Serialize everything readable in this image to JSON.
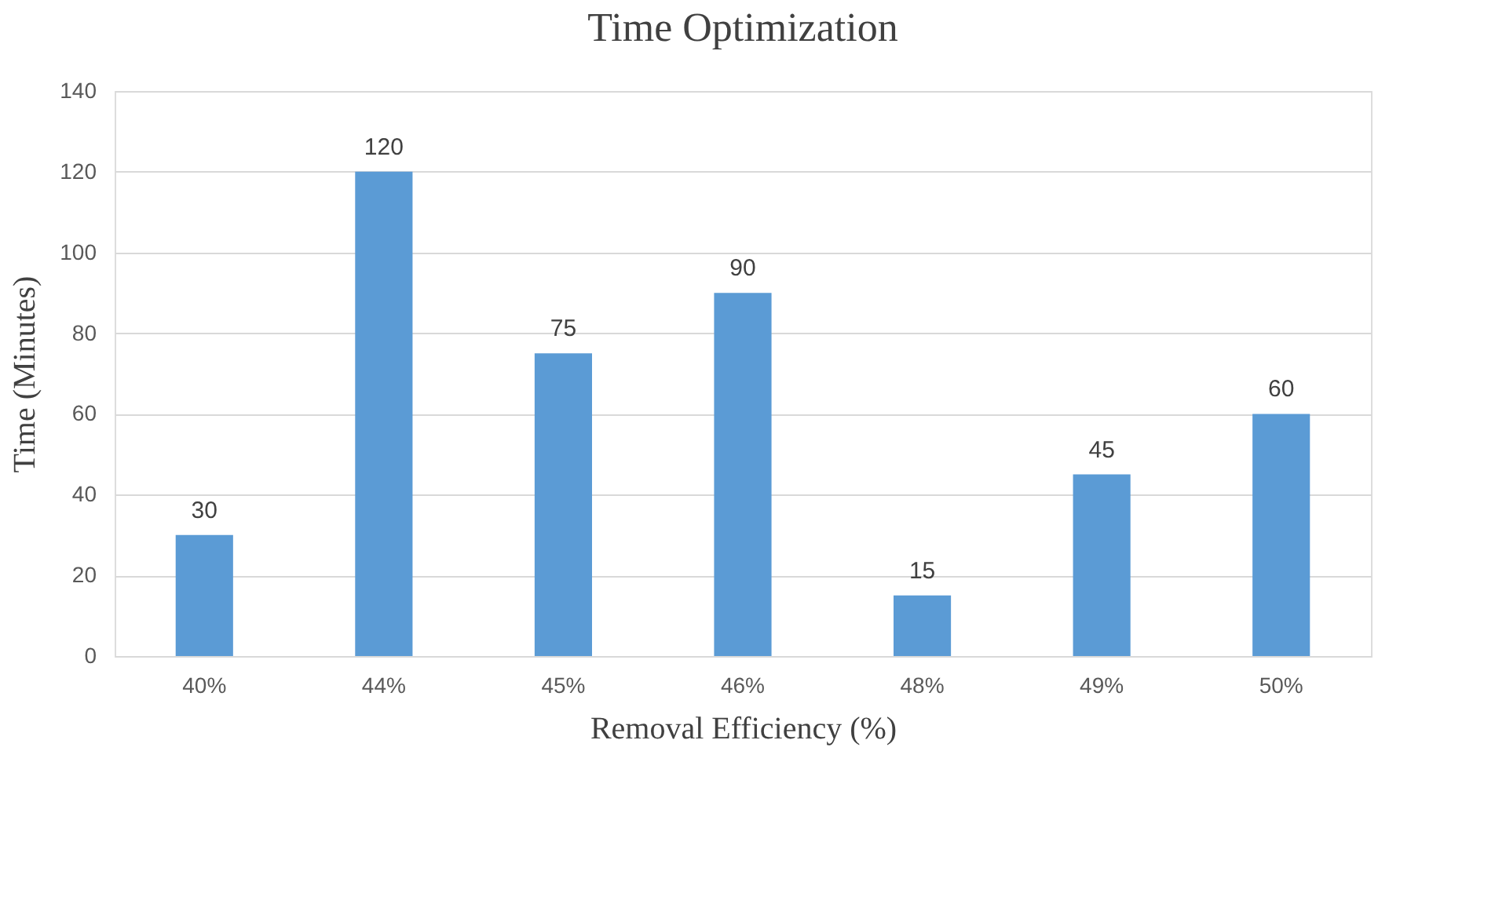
{
  "chart_data": {
    "type": "bar",
    "title": "Time Optimization",
    "xlabel": "Removal Efficiency (%)",
    "ylabel": "Time (Minutes)",
    "categories": [
      "40%",
      "44%",
      "45%",
      "46%",
      "48%",
      "49%",
      "50%"
    ],
    "values": [
      30,
      120,
      75,
      90,
      15,
      45,
      60
    ],
    "color": "#5b9bd5",
    "ylim": [
      0,
      140
    ],
    "yticks": [
      0,
      20,
      40,
      60,
      80,
      100,
      120,
      140
    ],
    "grid": "y",
    "data_labels": true
  }
}
